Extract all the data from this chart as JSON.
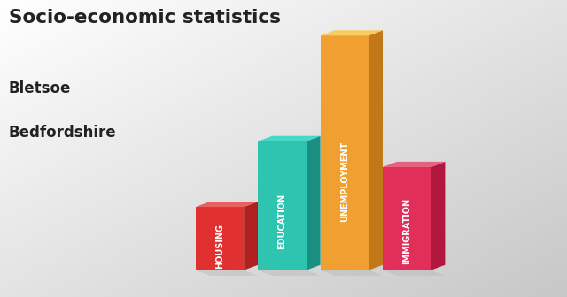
{
  "title_line1": "Socio-economic statistics",
  "title_line2": "Bletsoe",
  "title_line3": "Bedfordshire",
  "categories": [
    "HOUSING",
    "EDUCATION",
    "UNEMPLOYMENT",
    "IMMIGRATION"
  ],
  "values": [
    0.27,
    0.55,
    1.0,
    0.44
  ],
  "bar_front_colors": [
    "#E03030",
    "#2EC4B0",
    "#F0A030",
    "#E0305A"
  ],
  "bar_right_colors": [
    "#B02020",
    "#1A9080",
    "#C07818",
    "#B01840"
  ],
  "bar_top_colors": [
    "#E86060",
    "#48D8C8",
    "#F8CC60",
    "#E86080"
  ],
  "shadow_color": "#CCCCCC",
  "bg_color_tl": "#FFFFFF",
  "bg_color_br": "#BBBBBB",
  "text_color": "#222222",
  "figsize": [
    6.4,
    3.36
  ],
  "dpi": 100
}
